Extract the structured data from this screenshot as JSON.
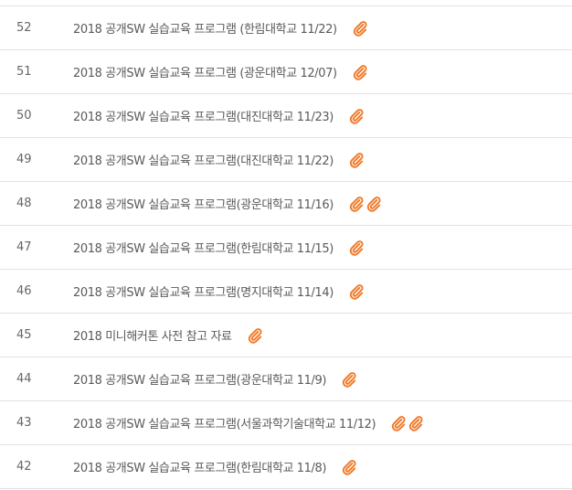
{
  "posts": [
    {
      "number": "52",
      "title": "2018 공개SW 실습교육 프로그램 (한림대학교 11/22)",
      "attachments": 1
    },
    {
      "number": "51",
      "title": "2018 공개SW 실습교육 프로그램 (광운대학교 12/07)",
      "attachments": 1
    },
    {
      "number": "50",
      "title": "2018 공개SW 실습교육 프로그램(대진대학교 11/23)",
      "attachments": 1
    },
    {
      "number": "49",
      "title": "2018 공개SW 실습교육 프로그램(대진대학교 11/22)",
      "attachments": 1
    },
    {
      "number": "48",
      "title": "2018 공개SW 실습교육 프로그램(광운대학교 11/16)",
      "attachments": 2
    },
    {
      "number": "47",
      "title": "2018 공개SW 실습교육 프로그램(한림대학교 11/15)",
      "attachments": 1
    },
    {
      "number": "46",
      "title": "2018 공개SW 실습교육 프로그램(명지대학교 11/14)",
      "attachments": 1
    },
    {
      "number": "45",
      "title": "2018 미니해커톤 사전 참고 자료",
      "attachments": 1
    },
    {
      "number": "44",
      "title": "2018 공개SW 실습교육 프로그램(광운대학교 11/9)",
      "attachments": 1
    },
    {
      "number": "43",
      "title": "2018 공개SW 실습교육 프로그램(서울과학기술대학교 11/12)",
      "attachments": 2
    },
    {
      "number": "42",
      "title": "2018 공개SW 실습교육 프로그램(한림대학교 11/8)",
      "attachments": 1
    }
  ],
  "icons": {
    "attachment": "paperclip-icon"
  },
  "colors": {
    "attachment_icon": "#f07a2a",
    "row_divider": "#e2e2e2",
    "text": "#5a5a5a"
  }
}
